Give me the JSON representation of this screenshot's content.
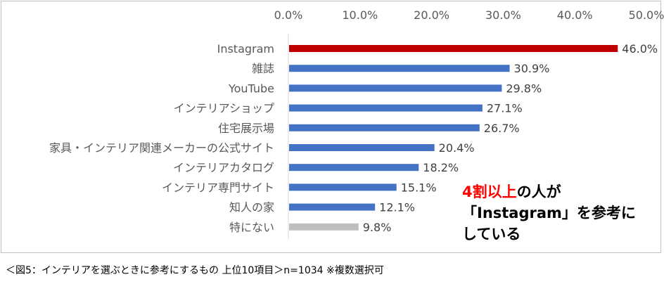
{
  "chart_data": {
    "type": "bar",
    "orientation": "horizontal",
    "categories": [
      "Instagram",
      "雑誌",
      "YouTube",
      "インテリアショップ",
      "住宅展示場",
      "家具・インテリア関連メーカーの公式サイト",
      "インテリアカタログ",
      "インテリア専門サイト",
      "知人の家",
      "特にない"
    ],
    "values": [
      46.0,
      30.9,
      29.8,
      27.1,
      26.7,
      20.4,
      18.2,
      15.1,
      12.1,
      9.8
    ],
    "value_labels": [
      "46.0%",
      "30.9%",
      "29.8%",
      "27.1%",
      "26.7%",
      "20.4%",
      "18.2%",
      "15.1%",
      "12.1%",
      "9.8%"
    ],
    "bar_colors": [
      "#c00000",
      "#4472c4",
      "#4472c4",
      "#4472c4",
      "#4472c4",
      "#4472c4",
      "#4472c4",
      "#4472c4",
      "#4472c4",
      "#bfbfbf"
    ],
    "xlim": [
      0,
      50
    ],
    "x_ticks": [
      0,
      10,
      20,
      30,
      40,
      50
    ],
    "x_tick_labels": [
      "0.0%",
      "10.0%",
      "20.0%",
      "30.0%",
      "40.0%",
      "50.0%"
    ],
    "x_axis_position": "top",
    "grid": false
  },
  "annotation": {
    "highlight": "4割以上",
    "line1_rest": "の人が",
    "line2": "「Instagram」を参考に",
    "line3": "している"
  },
  "caption": "＜図5：インテリアを選ぶときに参考にするもの 上位10項目＞n=1034 ※複数選択可"
}
